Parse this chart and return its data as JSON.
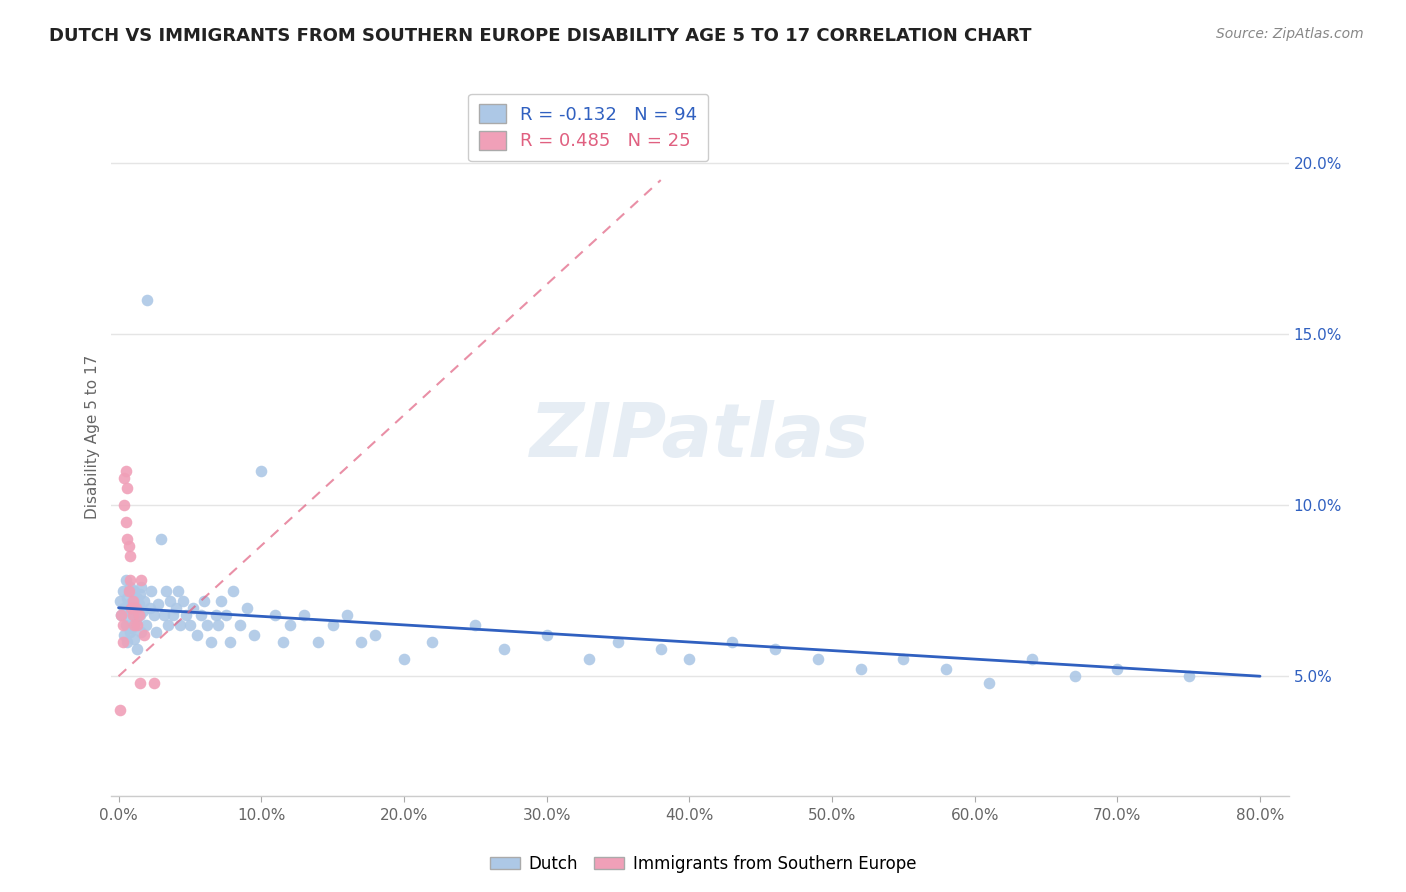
{
  "title": "DUTCH VS IMMIGRANTS FROM SOUTHERN EUROPE DISABILITY AGE 5 TO 17 CORRELATION CHART",
  "source": "Source: ZipAtlas.com",
  "ylabel": "Disability Age 5 to 17",
  "ytick_labels": [
    "5.0%",
    "10.0%",
    "15.0%",
    "20.0%"
  ],
  "ytick_values": [
    0.05,
    0.1,
    0.15,
    0.2
  ],
  "xlim": [
    -0.005,
    0.82
  ],
  "ylim": [
    0.015,
    0.225
  ],
  "dutch_color": "#adc8e6",
  "dutch_line_color": "#3060c0",
  "immigrant_color": "#f0a0b8",
  "immigrant_line_color": "#e06080",
  "dutch_R": -0.132,
  "dutch_N": 94,
  "immigrant_R": 0.485,
  "immigrant_N": 25,
  "dutch_x": [
    0.001,
    0.002,
    0.003,
    0.004,
    0.004,
    0.005,
    0.005,
    0.006,
    0.006,
    0.007,
    0.007,
    0.008,
    0.008,
    0.009,
    0.009,
    0.01,
    0.01,
    0.011,
    0.011,
    0.012,
    0.012,
    0.013,
    0.013,
    0.014,
    0.015,
    0.015,
    0.016,
    0.016,
    0.017,
    0.018,
    0.019,
    0.02,
    0.022,
    0.023,
    0.025,
    0.026,
    0.028,
    0.03,
    0.032,
    0.033,
    0.035,
    0.036,
    0.038,
    0.04,
    0.042,
    0.043,
    0.045,
    0.047,
    0.05,
    0.052,
    0.055,
    0.058,
    0.06,
    0.062,
    0.065,
    0.068,
    0.07,
    0.072,
    0.075,
    0.078,
    0.08,
    0.085,
    0.09,
    0.095,
    0.1,
    0.11,
    0.115,
    0.12,
    0.13,
    0.14,
    0.15,
    0.16,
    0.17,
    0.18,
    0.2,
    0.22,
    0.25,
    0.27,
    0.3,
    0.33,
    0.35,
    0.38,
    0.4,
    0.43,
    0.46,
    0.49,
    0.52,
    0.55,
    0.58,
    0.61,
    0.64,
    0.67,
    0.7,
    0.75
  ],
  "dutch_y": [
    0.072,
    0.068,
    0.075,
    0.062,
    0.07,
    0.065,
    0.078,
    0.06,
    0.073,
    0.067,
    0.071,
    0.063,
    0.076,
    0.069,
    0.064,
    0.072,
    0.068,
    0.075,
    0.061,
    0.07,
    0.066,
    0.073,
    0.058,
    0.071,
    0.068,
    0.074,
    0.063,
    0.076,
    0.069,
    0.072,
    0.065,
    0.16,
    0.07,
    0.075,
    0.068,
    0.063,
    0.071,
    0.09,
    0.068,
    0.075,
    0.065,
    0.072,
    0.068,
    0.07,
    0.075,
    0.065,
    0.072,
    0.068,
    0.065,
    0.07,
    0.062,
    0.068,
    0.072,
    0.065,
    0.06,
    0.068,
    0.065,
    0.072,
    0.068,
    0.06,
    0.075,
    0.065,
    0.07,
    0.062,
    0.11,
    0.068,
    0.06,
    0.065,
    0.068,
    0.06,
    0.065,
    0.068,
    0.06,
    0.062,
    0.055,
    0.06,
    0.065,
    0.058,
    0.062,
    0.055,
    0.06,
    0.058,
    0.055,
    0.06,
    0.058,
    0.055,
    0.052,
    0.055,
    0.052,
    0.048,
    0.055,
    0.05,
    0.052,
    0.05
  ],
  "imm_x": [
    0.001,
    0.002,
    0.003,
    0.003,
    0.004,
    0.004,
    0.005,
    0.005,
    0.006,
    0.006,
    0.007,
    0.007,
    0.008,
    0.008,
    0.009,
    0.01,
    0.01,
    0.011,
    0.012,
    0.013,
    0.014,
    0.015,
    0.016,
    0.018,
    0.025
  ],
  "imm_y": [
    0.04,
    0.068,
    0.065,
    0.06,
    0.1,
    0.108,
    0.095,
    0.11,
    0.09,
    0.105,
    0.075,
    0.088,
    0.078,
    0.085,
    0.07,
    0.072,
    0.068,
    0.065,
    0.07,
    0.065,
    0.068,
    0.048,
    0.078,
    0.062,
    0.048
  ],
  "watermark": "ZIPatlas",
  "background_color": "#ffffff",
  "grid_color": "#e5e5e5"
}
